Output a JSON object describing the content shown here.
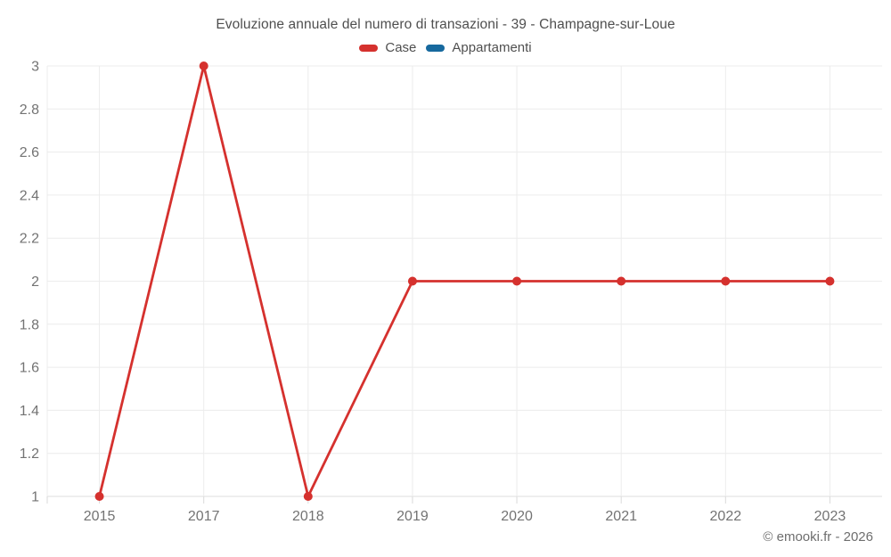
{
  "header": {
    "title": "Evoluzione annuale del numero di transazioni - 39 - Champagne-sur-Loue"
  },
  "legend": {
    "items": [
      {
        "label": "Case",
        "color": "#d5312e"
      },
      {
        "label": "Appartamenti",
        "color": "#17699e"
      }
    ]
  },
  "footer": {
    "copyright": "© emooki.fr - 2026"
  },
  "colors": {
    "grid": "#ececec",
    "axis_line": "#dcdcdc",
    "tick_mark": "#dadada",
    "tick_label": "#737373",
    "title_text": "#4f4f4f"
  },
  "chart_data": {
    "type": "line",
    "title": "Evoluzione annuale del numero di transazioni - 39 - Champagne-sur-Loue",
    "categories": [
      "2015",
      "2017",
      "2018",
      "2019",
      "2020",
      "2021",
      "2022",
      "2023"
    ],
    "series": [
      {
        "name": "Case",
        "color": "#d5312e",
        "values": [
          1,
          3,
          1,
          2,
          2,
          2,
          2,
          2
        ]
      },
      {
        "name": "Appartamenti",
        "color": "#17699e",
        "values": []
      }
    ],
    "xlabel": "",
    "ylabel": "",
    "ylim": [
      1,
      3
    ],
    "ytick_step": 0.2,
    "grid": true,
    "legend_position": "top",
    "point_radius": 5,
    "line_width": 2.8
  }
}
